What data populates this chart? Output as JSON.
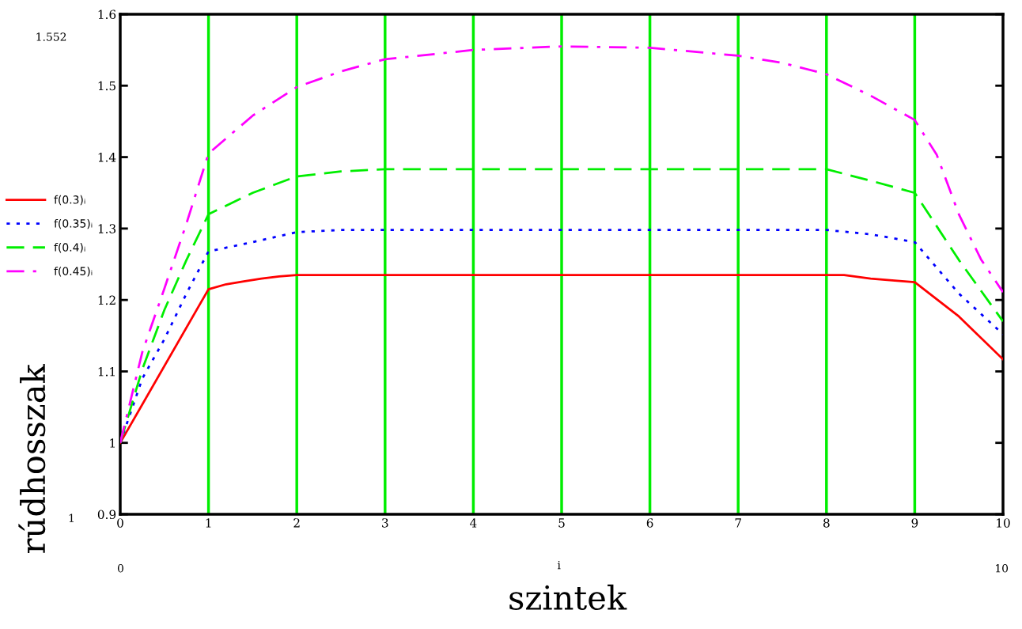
{
  "chart_data": {
    "type": "line",
    "xlabel": "szintek",
    "ylabel": "rúdhosszak",
    "xlim": [
      0,
      10
    ],
    "ylim": [
      0.9,
      1.6
    ],
    "xticks": [
      0,
      1,
      2,
      3,
      4,
      5,
      6,
      7,
      8,
      9,
      10
    ],
    "yticks": [
      0.9,
      1,
      1.1,
      1.2,
      1.3,
      1.4,
      1.5,
      1.6
    ],
    "ref_lines": [
      {
        "axis": "x",
        "value": 1,
        "color": "#00ee00"
      },
      {
        "axis": "x",
        "value": 2,
        "color": "#00ee00"
      },
      {
        "axis": "x",
        "value": 3,
        "color": "#00ee00"
      },
      {
        "axis": "x",
        "value": 4,
        "color": "#00ee00"
      },
      {
        "axis": "x",
        "value": 5,
        "color": "#00ee00"
      },
      {
        "axis": "x",
        "value": 6,
        "color": "#00ee00"
      },
      {
        "axis": "x",
        "value": 7,
        "color": "#00ee00"
      },
      {
        "axis": "x",
        "value": 8,
        "color": "#00ee00"
      },
      {
        "axis": "x",
        "value": 9,
        "color": "#00ee00"
      }
    ],
    "legend": "left",
    "marker": "none",
    "annotations": [
      "1.552",
      "1",
      "0",
      "10",
      "i"
    ],
    "series": [
      {
        "name": "f(0.3)ᵢ",
        "color": "#ff0000",
        "line_style": "solid",
        "x": [
          0,
          1,
          1.2,
          1.4,
          1.6,
          1.8,
          2,
          8.2,
          8.5,
          8.8,
          9,
          9.5,
          10
        ],
        "values": [
          1.0,
          1.215,
          1.222,
          1.226,
          1.23,
          1.233,
          1.235,
          1.235,
          1.23,
          1.227,
          1.225,
          1.177,
          1.117
        ]
      },
      {
        "name": "f(0.35)ᵢ",
        "color": "#0000ff",
        "line_style": "dotted",
        "x": [
          0,
          0.25,
          0.5,
          0.75,
          1,
          1.5,
          2,
          2.5,
          3,
          8,
          8.5,
          9,
          9.5,
          10
        ],
        "values": [
          1.0,
          1.09,
          1.145,
          1.209,
          1.268,
          1.281,
          1.295,
          1.298,
          1.298,
          1.298,
          1.292,
          1.281,
          1.209,
          1.152
        ]
      },
      {
        "name": "f(0.4)ᵢ",
        "color": "#00ee00",
        "line_style": "dashed",
        "x": [
          0,
          0.25,
          0.5,
          0.75,
          1,
          1.5,
          2,
          2.5,
          3,
          8,
          8.5,
          9,
          9.5,
          10
        ],
        "values": [
          1.0,
          1.103,
          1.186,
          1.256,
          1.32,
          1.35,
          1.373,
          1.38,
          1.383,
          1.383,
          1.367,
          1.35,
          1.256,
          1.17
        ]
      },
      {
        "name": "f(0.45)ᵢ",
        "color": "#ff00ff",
        "line_style": "dashdot",
        "x": [
          0,
          0.25,
          0.5,
          0.75,
          1,
          1.5,
          2,
          2.5,
          3,
          4,
          5,
          6,
          7,
          7.5,
          8,
          8.5,
          9,
          9.25,
          9.5,
          9.75,
          10
        ],
        "values": [
          1.0,
          1.127,
          1.216,
          1.307,
          1.405,
          1.458,
          1.498,
          1.52,
          1.537,
          1.55,
          1.555,
          1.553,
          1.542,
          1.532,
          1.516,
          1.486,
          1.452,
          1.403,
          1.32,
          1.257,
          1.211
        ]
      }
    ]
  }
}
